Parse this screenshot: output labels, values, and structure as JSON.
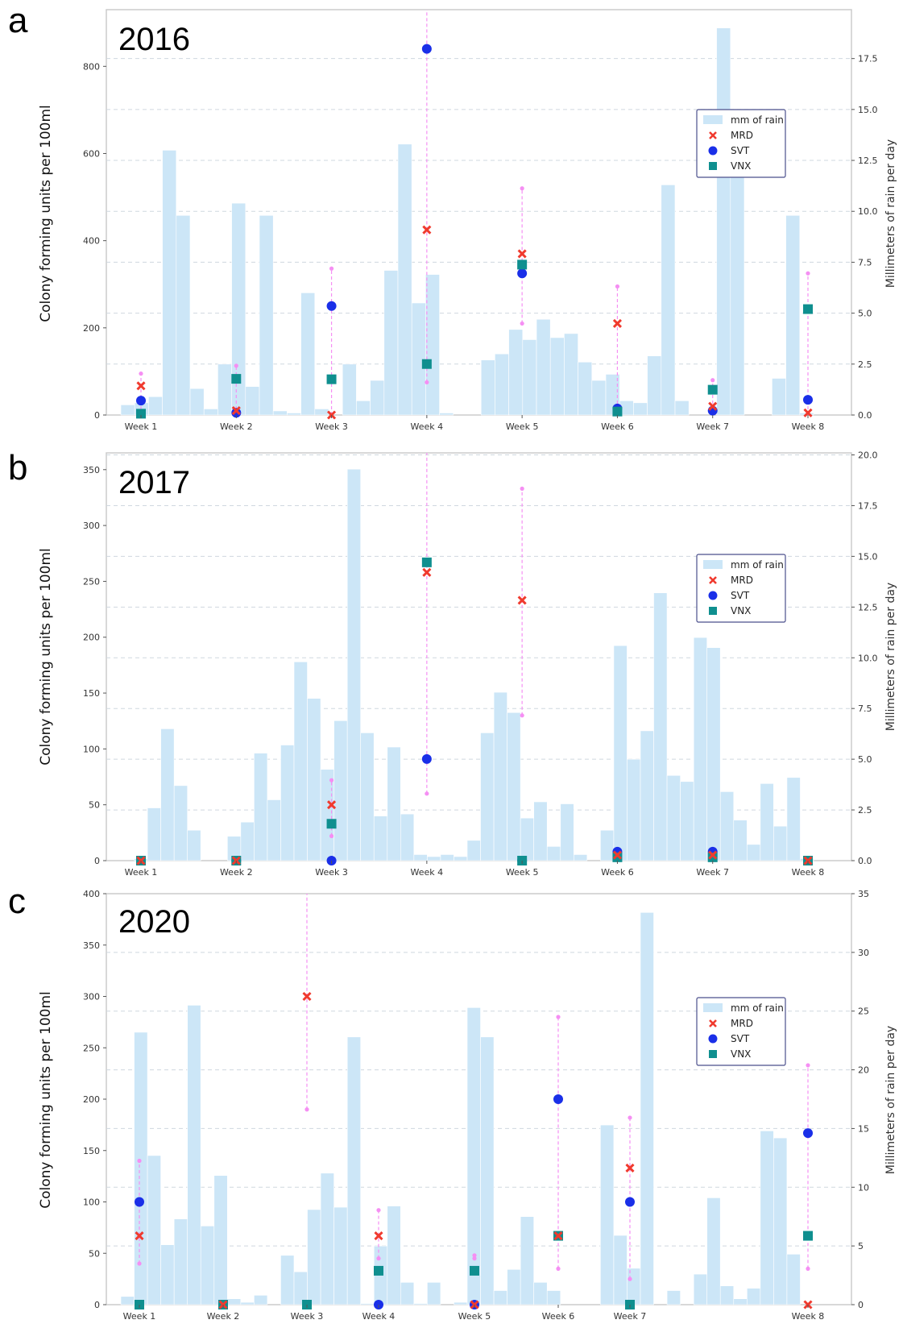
{
  "colors": {
    "rain": "#cce6f7",
    "mrd": "#f03a2e",
    "svt": "#1a2fe8",
    "vnx": "#0f8f8f",
    "errorbar": "#f58ff3",
    "grid": "#cfd8df",
    "frame": "#cccccc"
  },
  "legend": [
    "mm of rain",
    "MRD",
    "SVT",
    "VNX"
  ],
  "left_axis_title": "Colony forming units per 100ml",
  "right_axis_title": "Millimeters of rain per day",
  "chart_data": [
    {
      "panel": "a",
      "year": "2016",
      "type": "bar+scatter",
      "categories": [
        "Week 1",
        "Week 2",
        "Week 3",
        "Week 4",
        "Week 5",
        "Week 6",
        "Week 7",
        "Week 8"
      ],
      "ylim_left": [
        0,
        930
      ],
      "yticks_left": [
        0,
        200,
        400,
        600,
        800
      ],
      "ylim_right": [
        0,
        19.9
      ],
      "yticks_right": [
        0.0,
        2.5,
        5.0,
        7.5,
        10.0,
        12.5,
        15.0,
        17.5
      ],
      "ytick_labels_right": [
        "0.0",
        "2.5",
        "5.0",
        "7.5",
        "10.0",
        "12.5",
        "15.0",
        "17.5"
      ],
      "rain_mm": [
        0.5,
        0.6,
        0.9,
        13.0,
        9.8,
        1.3,
        0.3,
        2.5,
        10.4,
        1.4,
        9.8,
        0.2,
        0.1,
        6.0,
        0.3,
        0,
        2.5,
        0.7,
        1.7,
        7.1,
        13.3,
        5.5,
        6.9,
        0.1,
        0,
        0,
        2.7,
        3.0,
        4.2,
        3.7,
        4.7,
        3.8,
        4.0,
        2.6,
        1.7,
        2.0,
        0.7,
        0.6,
        2.9,
        11.3,
        0.7,
        0,
        0,
        19.0,
        14.0,
        0,
        0,
        1.8,
        9.8,
        0.1
      ],
      "mrd": [
        67,
        10,
        0,
        425,
        370,
        210,
        20,
        5
      ],
      "svt": [
        33,
        5,
        250,
        840,
        325,
        15,
        10,
        35
      ],
      "vnx": [
        3,
        83,
        82,
        117,
        345,
        8,
        58,
        243
      ],
      "error_ranges": [
        [
          0,
          95
        ],
        [
          0,
          113
        ],
        [
          0,
          336
        ],
        [
          75,
          930
        ],
        [
          210,
          520
        ],
        [
          0,
          295
        ],
        [
          0,
          80
        ],
        [
          0,
          325
        ]
      ]
    },
    {
      "panel": "b",
      "year": "2017",
      "type": "bar+scatter",
      "categories": [
        "Week 1",
        "Week 2",
        "Week 3",
        "Week 4",
        "Week 5",
        "Week 6",
        "Week 7",
        "Week 8"
      ],
      "ylim_left": [
        0,
        365
      ],
      "yticks_left": [
        0,
        50,
        100,
        150,
        200,
        250,
        300,
        350
      ],
      "ylim_right": [
        0,
        20.1
      ],
      "yticks_right": [
        0.0,
        2.5,
        5.0,
        7.5,
        10.0,
        12.5,
        15.0,
        17.5,
        20.0
      ],
      "ytick_labels_right": [
        "0.0",
        "2.5",
        "5.0",
        "7.5",
        "10.0",
        "12.5",
        "15.0",
        "17.5",
        "20.0"
      ],
      "rain_mm": [
        0,
        0.1,
        2.6,
        6.5,
        3.7,
        1.5,
        0,
        0,
        1.2,
        1.9,
        5.3,
        3.0,
        5.7,
        9.8,
        8.0,
        4.5,
        6.9,
        19.3,
        6.3,
        2.2,
        5.6,
        2.3,
        0.3,
        0.2,
        0.3,
        0.2,
        1.0,
        6.3,
        8.3,
        7.3,
        2.1,
        2.9,
        0.7,
        2.8,
        0.3,
        0,
        1.5,
        10.6,
        5.0,
        6.4,
        13.2,
        4.2,
        3.9,
        11.0,
        10.5,
        3.4,
        2.0,
        0.8,
        3.8,
        1.7,
        4.1,
        0.1
      ],
      "mrd": [
        0,
        0,
        50,
        258,
        233,
        5,
        5,
        0
      ],
      "svt": [
        0,
        0,
        0,
        91,
        0,
        8,
        8,
        0
      ],
      "vnx": [
        0,
        0,
        33,
        267,
        0,
        3,
        3,
        0
      ],
      "error_ranges": [
        [
          0,
          0
        ],
        [
          0,
          0
        ],
        [
          22,
          72
        ],
        [
          60,
          365
        ],
        [
          130,
          333
        ],
        [
          0,
          0
        ],
        [
          0,
          0
        ],
        [
          0,
          0
        ]
      ]
    },
    {
      "panel": "c",
      "year": "2020",
      "type": "bar+scatter",
      "categories": [
        "Week 1",
        "Week 2",
        "Week 3",
        "Week 4",
        "Week 5",
        "Week 6",
        "Week 7",
        "Week 8"
      ],
      "ylim_left": [
        0,
        400
      ],
      "yticks_left": [
        0,
        50,
        100,
        150,
        200,
        250,
        300,
        350,
        400
      ],
      "ylim_right": [
        0,
        35
      ],
      "yticks_right": [
        0,
        5,
        10,
        15,
        20,
        25,
        30,
        35
      ],
      "ytick_labels_right": [
        "0",
        "5",
        "10",
        "15",
        "20",
        "25",
        "30",
        "35"
      ],
      "rain_mm": [
        0.7,
        23.2,
        12.7,
        5.1,
        7.3,
        25.5,
        6.7,
        11.0,
        0.5,
        0.2,
        0.8,
        0,
        4.2,
        2.8,
        8.1,
        11.2,
        8.3,
        22.8,
        0.1,
        5.0,
        8.4,
        1.9,
        0.1,
        1.9,
        0,
        0.2,
        25.3,
        22.8,
        1.2,
        3.0,
        7.5,
        1.9,
        1.2,
        0,
        0,
        0,
        15.3,
        5.9,
        3.1,
        33.4,
        0,
        1.2,
        0,
        2.6,
        9.1,
        1.6,
        0.5,
        1.4,
        14.8,
        14.2,
        4.3,
        0
      ],
      "mrd": [
        67,
        0,
        300,
        67,
        0,
        67,
        133,
        0
      ],
      "svt": [
        100,
        0,
        0,
        0,
        0,
        200,
        100,
        167
      ],
      "vnx": [
        0,
        0,
        0,
        33,
        33,
        67,
        0,
        67
      ],
      "error_ranges": [
        [
          40,
          140
        ],
        [
          0,
          0
        ],
        [
          190,
          400
        ],
        [
          45,
          92
        ],
        [
          45,
          48
        ],
        [
          35,
          280
        ],
        [
          25,
          182
        ],
        [
          35,
          233
        ]
      ]
    }
  ]
}
